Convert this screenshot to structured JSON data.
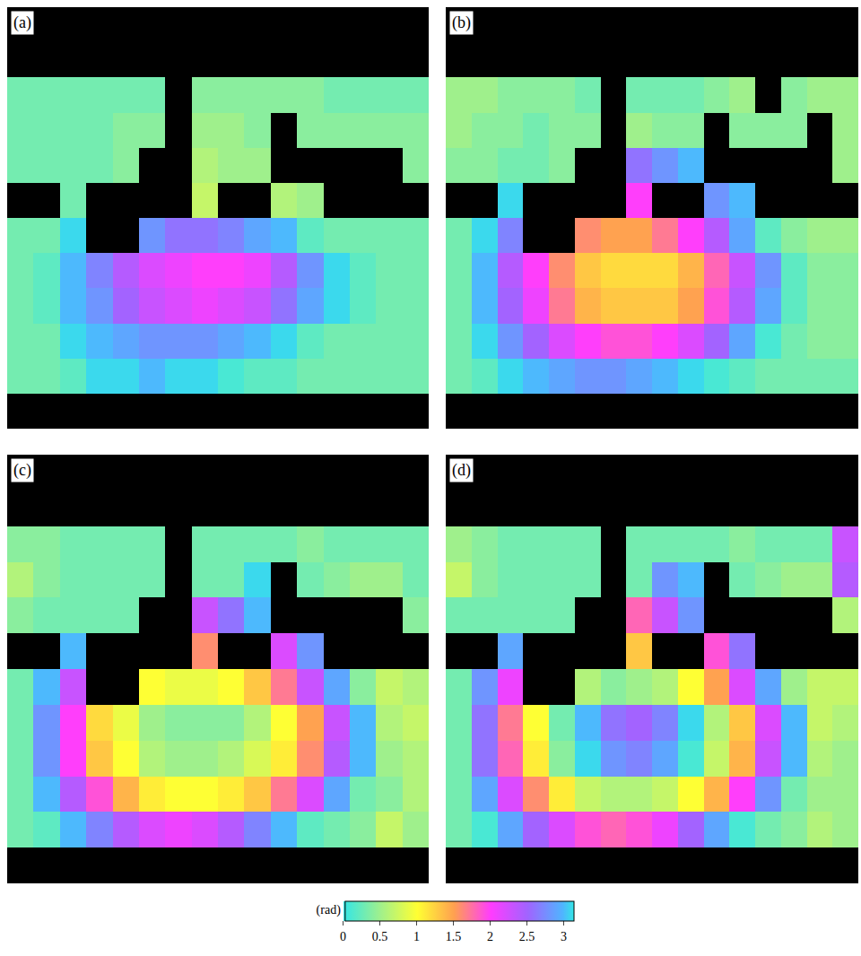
{
  "chart_data": {
    "type": "heatmap",
    "tick_labels": false,
    "zlim": [
      0,
      3.1416
    ],
    "zticks": [
      0,
      0.5,
      1,
      1.5,
      2,
      2.5,
      3
    ],
    "colorbar_title": "(rad)",
    "panels": [
      {
        "label": "(a)",
        "z": [
          [
            null,
            null,
            null,
            null,
            null,
            null,
            null,
            null,
            null,
            null,
            null,
            null,
            null,
            null,
            null,
            null
          ],
          [
            null,
            null,
            null,
            null,
            null,
            null,
            null,
            null,
            null,
            null,
            null,
            null,
            null,
            null,
            null,
            null
          ],
          [
            0.3,
            0.3,
            0.3,
            0.3,
            0.3,
            0.3,
            null,
            0.4,
            0.4,
            0.4,
            0.4,
            0.4,
            0.3,
            0.3,
            0.3,
            0.3
          ],
          [
            0.3,
            0.3,
            0.3,
            0.3,
            0.4,
            0.4,
            null,
            0.5,
            0.5,
            0.4,
            null,
            0.4,
            0.4,
            0.4,
            0.4,
            0.4
          ],
          [
            0.3,
            0.3,
            0.3,
            0.3,
            0.4,
            null,
            null,
            0.6,
            0.5,
            0.5,
            null,
            null,
            null,
            null,
            null,
            0.4
          ],
          [
            null,
            null,
            0.3,
            null,
            null,
            null,
            null,
            0.7,
            null,
            null,
            0.6,
            0.5,
            null,
            null,
            null,
            null
          ],
          [
            0.3,
            0.3,
            3.1,
            null,
            null,
            2.8,
            2.6,
            2.6,
            2.7,
            2.9,
            3.0,
            0.2,
            0.3,
            0.3,
            0.3,
            0.3
          ],
          [
            0.3,
            0.2,
            3.0,
            2.7,
            2.4,
            2.2,
            2.1,
            2.0,
            2.0,
            2.1,
            2.4,
            2.8,
            3.1,
            0.2,
            0.3,
            0.3
          ],
          [
            0.3,
            0.2,
            3.0,
            2.8,
            2.5,
            2.3,
            2.2,
            2.1,
            2.2,
            2.3,
            2.6,
            2.9,
            3.1,
            0.2,
            0.3,
            0.3
          ],
          [
            0.3,
            0.3,
            3.1,
            3.0,
            2.9,
            2.8,
            2.8,
            2.8,
            2.9,
            3.0,
            3.1,
            0.2,
            0.3,
            0.3,
            0.3,
            0.3
          ],
          [
            0.3,
            0.3,
            0.2,
            3.1,
            3.1,
            3.0,
            3.1,
            3.1,
            0.1,
            0.2,
            0.2,
            0.3,
            0.3,
            0.3,
            0.3,
            0.3
          ],
          [
            null,
            null,
            null,
            null,
            null,
            null,
            null,
            null,
            null,
            null,
            null,
            null,
            null,
            null,
            null,
            null
          ]
        ]
      },
      {
        "label": "(b)",
        "z": [
          [
            null,
            null,
            null,
            null,
            null,
            null,
            null,
            null,
            null,
            null,
            null,
            null,
            null,
            null,
            null,
            null
          ],
          [
            null,
            null,
            null,
            null,
            null,
            null,
            null,
            null,
            null,
            null,
            null,
            null,
            null,
            null,
            null,
            null
          ],
          [
            0.5,
            0.5,
            0.4,
            0.4,
            0.4,
            0.3,
            null,
            0.3,
            0.3,
            0.3,
            0.4,
            0.5,
            null,
            0.4,
            0.5,
            0.5
          ],
          [
            0.5,
            0.4,
            0.4,
            0.3,
            0.4,
            0.4,
            null,
            0.5,
            0.4,
            0.4,
            null,
            0.4,
            0.4,
            0.4,
            null,
            0.5
          ],
          [
            0.4,
            0.4,
            0.3,
            0.3,
            0.4,
            null,
            null,
            2.6,
            2.8,
            3.0,
            null,
            null,
            null,
            null,
            null,
            0.5
          ],
          [
            null,
            null,
            3.1,
            null,
            null,
            null,
            null,
            2.0,
            null,
            null,
            2.8,
            3.0,
            null,
            null,
            null,
            null
          ],
          [
            0.3,
            3.1,
            2.7,
            null,
            null,
            1.6,
            1.5,
            1.5,
            1.7,
            2.0,
            2.4,
            2.9,
            0.2,
            0.4,
            0.5,
            0.5
          ],
          [
            0.3,
            3.0,
            2.4,
            2.0,
            1.6,
            1.3,
            1.2,
            1.2,
            1.2,
            1.4,
            1.8,
            2.3,
            2.8,
            0.2,
            0.4,
            0.4
          ],
          [
            0.3,
            3.0,
            2.5,
            2.1,
            1.7,
            1.4,
            1.3,
            1.3,
            1.3,
            1.5,
            1.9,
            2.4,
            2.9,
            0.2,
            0.4,
            0.4
          ],
          [
            0.3,
            3.1,
            2.8,
            2.5,
            2.2,
            2.0,
            1.9,
            1.9,
            2.0,
            2.2,
            2.5,
            2.9,
            0.1,
            0.3,
            0.4,
            0.4
          ],
          [
            0.3,
            0.2,
            3.1,
            3.0,
            2.9,
            2.8,
            2.8,
            2.9,
            3.0,
            3.1,
            0.1,
            0.2,
            0.3,
            0.3,
            0.3,
            0.3
          ],
          [
            null,
            null,
            null,
            null,
            null,
            null,
            null,
            null,
            null,
            null,
            null,
            null,
            null,
            null,
            null,
            null
          ]
        ]
      },
      {
        "label": "(c)",
        "z": [
          [
            null,
            null,
            null,
            null,
            null,
            null,
            null,
            null,
            null,
            null,
            null,
            null,
            null,
            null,
            null,
            null
          ],
          [
            null,
            null,
            null,
            null,
            null,
            null,
            null,
            null,
            null,
            null,
            null,
            null,
            null,
            null,
            null,
            null
          ],
          [
            0.4,
            0.4,
            0.3,
            0.3,
            0.3,
            0.3,
            null,
            0.3,
            0.3,
            0.3,
            0.3,
            0.4,
            0.3,
            0.3,
            0.3,
            0.3
          ],
          [
            0.6,
            0.4,
            0.3,
            0.3,
            0.3,
            0.3,
            null,
            0.3,
            0.3,
            3.1,
            null,
            0.3,
            0.4,
            0.5,
            0.5,
            0.3
          ],
          [
            0.4,
            0.3,
            0.3,
            0.3,
            0.3,
            null,
            null,
            2.3,
            2.6,
            3.0,
            null,
            null,
            null,
            null,
            null,
            0.4
          ],
          [
            null,
            null,
            3.0,
            null,
            null,
            null,
            null,
            1.6,
            null,
            null,
            2.2,
            2.8,
            null,
            null,
            null,
            null
          ],
          [
            0.3,
            3.0,
            2.3,
            null,
            null,
            1.0,
            0.9,
            0.9,
            1.0,
            1.3,
            1.7,
            2.3,
            2.9,
            0.4,
            0.7,
            0.6
          ],
          [
            0.3,
            2.8,
            2.0,
            1.2,
            0.9,
            0.5,
            0.4,
            0.4,
            0.4,
            0.6,
            1.0,
            1.5,
            2.3,
            3.0,
            0.6,
            0.7
          ],
          [
            0.3,
            2.8,
            2.0,
            1.3,
            1.0,
            0.6,
            0.5,
            0.5,
            0.6,
            0.8,
            1.1,
            1.6,
            2.4,
            3.0,
            0.5,
            0.6
          ],
          [
            0.3,
            3.0,
            2.4,
            1.9,
            1.4,
            1.1,
            1.0,
            1.0,
            1.1,
            1.3,
            1.7,
            2.2,
            2.9,
            0.3,
            0.4,
            0.6
          ],
          [
            0.3,
            0.2,
            3.0,
            2.7,
            2.4,
            2.2,
            2.1,
            2.2,
            2.4,
            2.7,
            3.0,
            0.2,
            0.3,
            0.4,
            0.7,
            0.5
          ],
          [
            null,
            null,
            null,
            null,
            null,
            null,
            null,
            null,
            null,
            null,
            null,
            null,
            null,
            null,
            null,
            null
          ]
        ]
      },
      {
        "label": "(d)",
        "z": [
          [
            null,
            null,
            null,
            null,
            null,
            null,
            null,
            null,
            null,
            null,
            null,
            null,
            null,
            null,
            null,
            null
          ],
          [
            null,
            null,
            null,
            null,
            null,
            null,
            null,
            null,
            null,
            null,
            null,
            null,
            null,
            null,
            null,
            null
          ],
          [
            0.5,
            0.4,
            0.3,
            0.3,
            0.3,
            0.3,
            null,
            0.3,
            0.3,
            0.3,
            0.3,
            0.4,
            0.3,
            0.3,
            0.3,
            2.3
          ],
          [
            0.7,
            0.4,
            0.3,
            0.3,
            0.3,
            0.3,
            null,
            0.3,
            2.8,
            3.0,
            null,
            0.3,
            0.4,
            0.5,
            0.5,
            2.4
          ],
          [
            0.3,
            0.3,
            0.3,
            0.3,
            0.3,
            null,
            null,
            1.8,
            2.3,
            2.8,
            null,
            null,
            null,
            null,
            null,
            0.6
          ],
          [
            null,
            null,
            2.9,
            null,
            null,
            null,
            null,
            1.3,
            null,
            null,
            1.9,
            2.6,
            null,
            null,
            null,
            null
          ],
          [
            0.3,
            2.8,
            2.1,
            null,
            null,
            0.6,
            0.4,
            0.5,
            0.6,
            1.0,
            1.5,
            2.2,
            2.9,
            0.5,
            0.7,
            0.7
          ],
          [
            0.3,
            2.6,
            1.7,
            1.0,
            0.3,
            3.0,
            2.6,
            2.5,
            2.7,
            3.1,
            0.6,
            1.3,
            2.2,
            3.0,
            0.7,
            0.6
          ],
          [
            0.3,
            2.6,
            1.8,
            1.1,
            0.4,
            3.1,
            2.8,
            2.7,
            2.9,
            0.1,
            0.7,
            1.4,
            2.3,
            3.0,
            0.6,
            0.5
          ],
          [
            0.3,
            2.9,
            2.2,
            1.6,
            1.1,
            0.7,
            0.6,
            0.6,
            0.7,
            1.0,
            1.4,
            2.0,
            2.8,
            0.3,
            0.5,
            0.5
          ],
          [
            0.3,
            0.1,
            2.9,
            2.5,
            2.2,
            1.9,
            1.8,
            1.9,
            2.1,
            2.5,
            2.9,
            0.1,
            0.3,
            0.4,
            0.6,
            0.5
          ],
          [
            null,
            null,
            null,
            null,
            null,
            null,
            null,
            null,
            null,
            null,
            null,
            null,
            null,
            null,
            null,
            null
          ]
        ]
      }
    ]
  }
}
